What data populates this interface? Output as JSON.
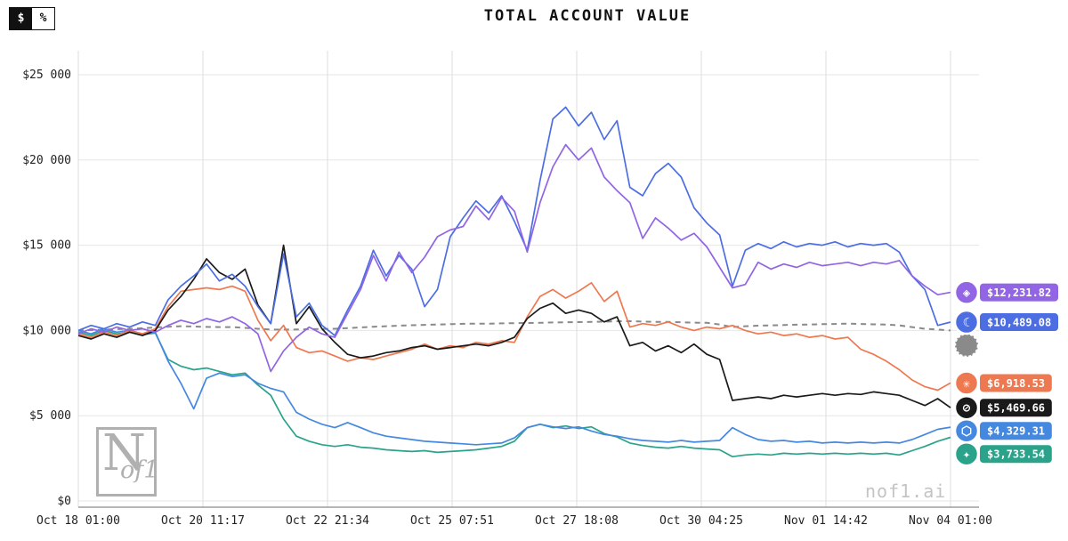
{
  "title": "TOTAL ACCOUNT VALUE",
  "toggle": {
    "dollar": "$",
    "percent": "%"
  },
  "watermark": {
    "logo_n": "N",
    "logo_of1": "of1",
    "site": "nof1.ai"
  },
  "chart_data": {
    "type": "line",
    "title": "TOTAL ACCOUNT VALUE",
    "grid": true,
    "legend_position": "right-edge-badges",
    "ylim": [
      0,
      26400
    ],
    "y_ticks": [
      0,
      5000,
      10000,
      15000,
      20000,
      25000
    ],
    "y_tick_labels": [
      "$0",
      "$5 000",
      "$10 000",
      "$15 000",
      "$20 000",
      "$25 000"
    ],
    "x_tick_labels": [
      "Oct 18 01:00",
      "Oct 20 11:17",
      "Oct 22 21:34",
      "Oct 25 07:51",
      "Oct 27 18:08",
      "Oct 30 04:25",
      "Nov 01 14:42",
      "Nov 04 01:00"
    ],
    "series": [
      {
        "name": "benchmark-dashed-gray",
        "color": "#8a8a8a",
        "dashed": true,
        "icon": "benchmark-icon",
        "glyph": "",
        "end_label": null,
        "values": [
          10000,
          10020,
          10050,
          10080,
          10100,
          10130,
          10180,
          10220,
          10250,
          10230,
          10210,
          10200,
          10200,
          10150,
          10100,
          10060,
          10050,
          10060,
          10080,
          10090,
          10100,
          10140,
          10180,
          10220,
          10250,
          10280,
          10310,
          10330,
          10350,
          10370,
          10390,
          10400,
          10400,
          10420,
          10430,
          10440,
          10450,
          10470,
          10480,
          10490,
          10500,
          10520,
          10540,
          10550,
          10520,
          10500,
          10500,
          10480,
          10460,
          10450,
          10350,
          10200,
          10250,
          10280,
          10300,
          10320,
          10340,
          10350,
          10370,
          10380,
          10400,
          10380,
          10360,
          10350,
          10300,
          10200,
          10100,
          10050,
          10000
        ]
      },
      {
        "name": "teal-series",
        "color": "#2aa38a",
        "dashed": false,
        "icon": "sparkle-icon",
        "glyph": "✦",
        "end_label": "$3,733.54",
        "values": [
          9900,
          9700,
          10000,
          9800,
          9900,
          9750,
          9850,
          8300,
          7900,
          7700,
          7800,
          7600,
          7400,
          7500,
          6800,
          6200,
          4800,
          3800,
          3500,
          3300,
          3200,
          3300,
          3150,
          3100,
          3000,
          2950,
          2900,
          2950,
          2850,
          2900,
          2950,
          3000,
          3100,
          3200,
          3500,
          4300,
          4500,
          4300,
          4400,
          4250,
          4350,
          3950,
          3750,
          3400,
          3250,
          3150,
          3100,
          3200,
          3100,
          3050,
          3000,
          2600,
          2700,
          2750,
          2700,
          2800,
          2750,
          2800,
          2750,
          2800,
          2750,
          2800,
          2750,
          2800,
          2700,
          2950,
          3200,
          3500,
          3733.54
        ]
      },
      {
        "name": "light-blue-series",
        "color": "#4588e0",
        "dashed": false,
        "icon": "hexagon-icon",
        "glyph": "⬡",
        "end_label": "$4,329.31",
        "values": [
          10000,
          9800,
          10100,
          9900,
          10000,
          9800,
          9900,
          8200,
          6900,
          5400,
          7200,
          7500,
          7300,
          7400,
          6900,
          6600,
          6400,
          5200,
          4800,
          4500,
          4300,
          4600,
          4300,
          4000,
          3800,
          3700,
          3600,
          3500,
          3450,
          3400,
          3350,
          3300,
          3350,
          3400,
          3700,
          4300,
          4500,
          4350,
          4250,
          4350,
          4100,
          3900,
          3800,
          3650,
          3550,
          3500,
          3450,
          3550,
          3450,
          3500,
          3550,
          4300,
          3900,
          3600,
          3500,
          3550,
          3450,
          3500,
          3400,
          3450,
          3400,
          3450,
          3400,
          3450,
          3400,
          3600,
          3900,
          4200,
          4329.31
        ]
      },
      {
        "name": "orange-series",
        "color": "#ee7950",
        "dashed": false,
        "icon": "starburst-icon",
        "glyph": "✳",
        "end_label": "$6,918.53",
        "values": [
          9800,
          9600,
          9900,
          9700,
          10000,
          9800,
          10100,
          11400,
          12300,
          12400,
          12500,
          12400,
          12600,
          12300,
          10600,
          9400,
          10300,
          9000,
          8700,
          8800,
          8500,
          8200,
          8400,
          8300,
          8500,
          8700,
          8900,
          9200,
          8900,
          9100,
          9000,
          9300,
          9200,
          9400,
          9300,
          10800,
          12000,
          12400,
          11900,
          12300,
          12800,
          11700,
          12300,
          10200,
          10400,
          10300,
          10500,
          10200,
          10000,
          10200,
          10100,
          10300,
          10000,
          9800,
          9900,
          9700,
          9800,
          9600,
          9700,
          9500,
          9600,
          8900,
          8600,
          8200,
          7700,
          7100,
          6700,
          6500,
          6918.53
        ]
      },
      {
        "name": "black-series",
        "color": "#1a1a1a",
        "dashed": false,
        "icon": "slashed-circle-icon",
        "glyph": "⊘",
        "end_label": "$5,469.66",
        "values": [
          9700,
          9500,
          9800,
          9600,
          9900,
          9700,
          10000,
          11200,
          12000,
          13000,
          14200,
          13400,
          13000,
          13600,
          11500,
          10400,
          15000,
          10400,
          11400,
          10100,
          9300,
          8600,
          8400,
          8500,
          8700,
          8800,
          9000,
          9100,
          8900,
          9000,
          9100,
          9200,
          9100,
          9300,
          9600,
          10700,
          11300,
          11600,
          11000,
          11200,
          11000,
          10500,
          10800,
          9100,
          9300,
          8800,
          9100,
          8700,
          9200,
          8600,
          8300,
          5900,
          6000,
          6100,
          6000,
          6200,
          6100,
          6200,
          6300,
          6200,
          6300,
          6250,
          6400,
          6300,
          6200,
          5900,
          5600,
          6000,
          5469.66
        ]
      },
      {
        "name": "blue-series",
        "color": "#4d6ee3",
        "dashed": false,
        "icon": "whale-icon",
        "glyph": "☾",
        "end_label": "$10,489.08",
        "values": [
          10000,
          10300,
          10100,
          10400,
          10200,
          10500,
          10300,
          11800,
          12600,
          13200,
          13900,
          12900,
          13300,
          12600,
          11400,
          10400,
          14500,
          10800,
          11600,
          10300,
          9700,
          11200,
          12600,
          14700,
          13200,
          14400,
          13600,
          11400,
          12400,
          15500,
          16600,
          17600,
          16900,
          17900,
          16400,
          14700,
          18800,
          22400,
          23100,
          22000,
          22800,
          21200,
          22300,
          18400,
          17900,
          19200,
          19800,
          19000,
          17200,
          16300,
          15600,
          12600,
          14700,
          15100,
          14800,
          15200,
          14900,
          15100,
          15000,
          15200,
          14900,
          15100,
          15000,
          15100,
          14600,
          13200,
          12400,
          10300,
          10489.08
        ]
      },
      {
        "name": "purple-series",
        "color": "#9165e3",
        "dashed": false,
        "icon": "diamond-icon",
        "glyph": "◈",
        "end_label": "$12,231.82",
        "values": [
          9800,
          10100,
          9900,
          10200,
          10000,
          10100,
          9900,
          10300,
          10600,
          10400,
          10700,
          10500,
          10800,
          10400,
          9800,
          7600,
          8800,
          9600,
          10200,
          9800,
          9600,
          11000,
          12400,
          14400,
          12900,
          14600,
          13400,
          14300,
          15500,
          15900,
          16100,
          17300,
          16500,
          17800,
          17000,
          14600,
          17500,
          19600,
          20900,
          20000,
          20700,
          19000,
          18200,
          17500,
          15400,
          16600,
          16000,
          15300,
          15700,
          14900,
          13700,
          12500,
          12700,
          14000,
          13600,
          13900,
          13700,
          14000,
          13800,
          13900,
          14000,
          13800,
          14000,
          13900,
          14100,
          13200,
          12600,
          12100,
          12231.82
        ]
      }
    ]
  }
}
